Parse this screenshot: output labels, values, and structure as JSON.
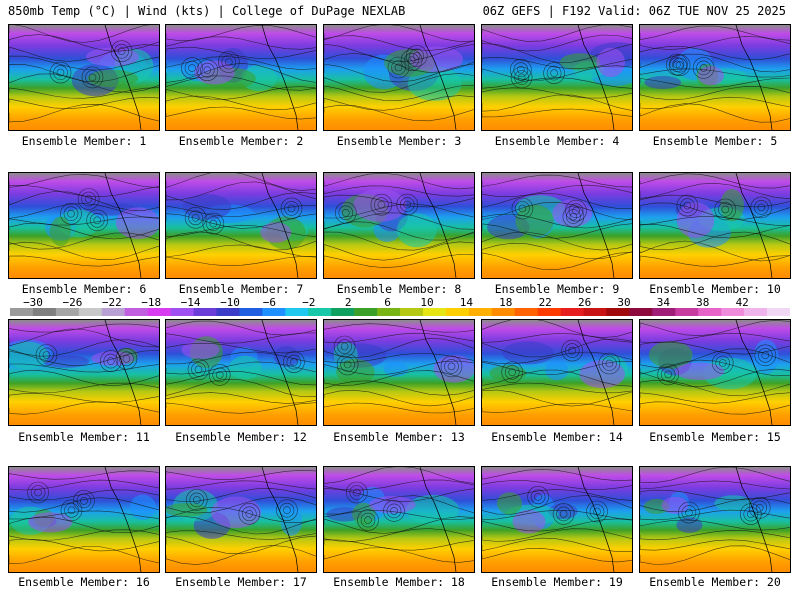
{
  "header": {
    "left": "850mb Temp (°C) | Wind (kts) | College of DuPage NEXLAB",
    "right": "06Z GEFS | F192 Valid: 06Z TUE NOV 25 2025"
  },
  "panels": [
    "Ensemble Member: 1",
    "Ensemble Member: 2",
    "Ensemble Member: 3",
    "Ensemble Member: 4",
    "Ensemble Member: 5",
    "Ensemble Member: 6",
    "Ensemble Member: 7",
    "Ensemble Member: 8",
    "Ensemble Member: 9",
    "Ensemble Member: 10",
    "Ensemble Member: 11",
    "Ensemble Member: 12",
    "Ensemble Member: 13",
    "Ensemble Member: 14",
    "Ensemble Member: 15",
    "Ensemble Member: 16",
    "Ensemble Member: 17",
    "Ensemble Member: 18",
    "Ensemble Member: 19",
    "Ensemble Member: 20"
  ],
  "colorbar": {
    "ticks": [
      "−30",
      "−26",
      "−22",
      "−18",
      "−14",
      "−10",
      "−6",
      "−2",
      "2",
      "6",
      "10",
      "14",
      "18",
      "22",
      "26",
      "30",
      "34",
      "38",
      "42"
    ],
    "colors": [
      "#9a9a9a",
      "#7f7f7f",
      "#a5a5a5",
      "#c8c8c8",
      "#b9a0d4",
      "#c060e0",
      "#d83cf0",
      "#a050f0",
      "#6a3cd8",
      "#3c3cc8",
      "#2060e0",
      "#1e90ff",
      "#20c8f0",
      "#18c8a8",
      "#10a060",
      "#3ca028",
      "#78b414",
      "#b4c814",
      "#e6e614",
      "#ffd000",
      "#ffb000",
      "#ff8c00",
      "#ff6400",
      "#ff3c00",
      "#e61e1e",
      "#c81414",
      "#a00a0a",
      "#8c0a3c",
      "#a01e78",
      "#c83ca0",
      "#e664c8",
      "#f08cdc",
      "#f0b4ec",
      "#f0d8f4"
    ]
  }
}
